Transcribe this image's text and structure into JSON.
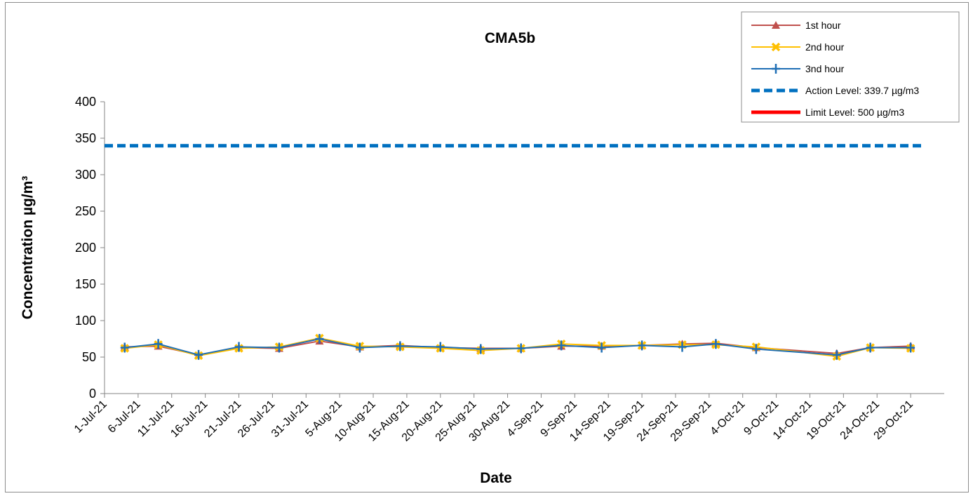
{
  "chart_data": {
    "type": "line",
    "title": "CMA5b",
    "xlabel": "Date",
    "ylabel": "Concentration µg/m³",
    "ylim": [
      0,
      400
    ],
    "yticks": [
      0,
      50,
      100,
      150,
      200,
      250,
      300,
      350,
      400
    ],
    "xlim": [
      "2021-07-01",
      "2021-11-03"
    ],
    "xtick_labels": [
      "1-Jul-21",
      "6-Jul-21",
      "11-Jul-21",
      "16-Jul-21",
      "21-Jul-21",
      "26-Jul-21",
      "31-Jul-21",
      "5-Aug-21",
      "10-Aug-21",
      "15-Aug-21",
      "20-Aug-21",
      "25-Aug-21",
      "30-Aug-21",
      "4-Sep-21",
      "9-Sep-21",
      "14-Sep-21",
      "19-Sep-21",
      "24-Sep-21",
      "29-Sep-21",
      "4-Oct-21",
      "9-Oct-21",
      "14-Oct-21",
      "19-Oct-21",
      "24-Oct-21",
      "29-Oct-21"
    ],
    "grid": false,
    "legend_position": "top-right",
    "x": [
      "2021-07-04",
      "2021-07-09",
      "2021-07-15",
      "2021-07-21",
      "2021-07-27",
      "2021-08-02",
      "2021-08-08",
      "2021-08-14",
      "2021-08-20",
      "2021-08-26",
      "2021-09-01",
      "2021-09-07",
      "2021-09-13",
      "2021-09-19",
      "2021-09-25",
      "2021-09-30",
      "2021-10-06",
      "2021-10-18",
      "2021-10-23",
      "2021-10-29"
    ],
    "series": [
      {
        "name": "1st hour",
        "color": "#c0504d",
        "marker": "triangle",
        "values": [
          64,
          65,
          53,
          63,
          62,
          72,
          64,
          66,
          63,
          62,
          62,
          65,
          65,
          66,
          68,
          69,
          63,
          55,
          63,
          65
        ]
      },
      {
        "name": "2nd hour",
        "color": "#ffc000",
        "marker": "x",
        "values": [
          62,
          67,
          52,
          62,
          64,
          76,
          65,
          64,
          62,
          59,
          62,
          68,
          66,
          66,
          67,
          67,
          64,
          51,
          63,
          62
        ]
      },
      {
        "name": "3nd hour",
        "color": "#1f6fb5",
        "marker": "plus",
        "values": [
          63,
          68,
          53,
          64,
          63,
          75,
          63,
          65,
          64,
          61,
          62,
          66,
          63,
          66,
          64,
          68,
          61,
          53,
          63,
          63
        ]
      }
    ],
    "reference_lines": [
      {
        "name": "Action Level: 339.7 µg/m3",
        "value": 339.7,
        "color": "#0070c0",
        "style": "dashed",
        "x_start": "2021-07-01",
        "x_end": "2021-10-31"
      },
      {
        "name": "Limit Level: 500 µg/m3",
        "value": 500,
        "color": "#ff0000",
        "style": "solid"
      }
    ]
  }
}
